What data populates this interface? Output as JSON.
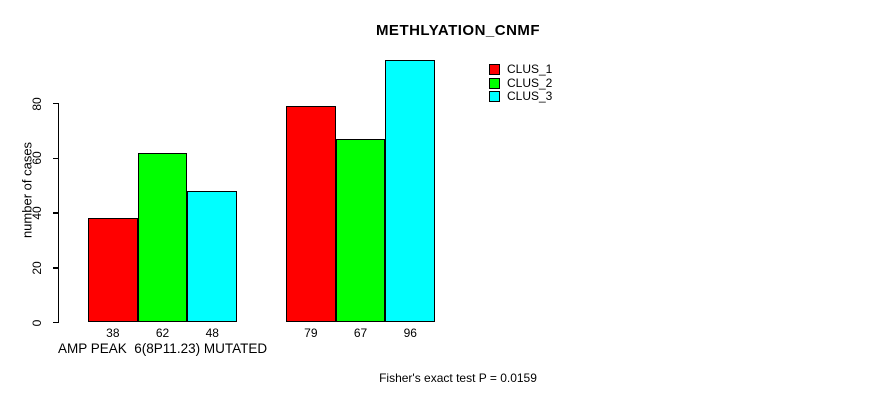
{
  "chart_data": {
    "type": "bar",
    "title": "METHLYATION_CNMF",
    "ylabel": "number of cases",
    "xlabel": "",
    "ylim": [
      0,
      80
    ],
    "yticks": [
      0,
      20,
      40,
      60,
      80
    ],
    "grid": false,
    "legend_position": "top-right",
    "categories": [
      "AMP PEAK  6(8P11.23) MUTATED",
      ""
    ],
    "series": [
      {
        "name": "CLUS_1",
        "color": "#ff0000",
        "values": [
          38,
          79
        ]
      },
      {
        "name": "CLUS_2",
        "color": "#00ff00",
        "values": [
          62,
          67
        ]
      },
      {
        "name": "CLUS_3",
        "color": "#00ffff",
        "values": [
          48,
          96
        ]
      }
    ],
    "value_labels": [
      [
        "38",
        "62",
        "48"
      ],
      [
        "79",
        "67",
        "96"
      ]
    ],
    "footnote": "Fisher's exact test P = 0.0159",
    "axis_color": "#000000",
    "bar_border_color": "#000000",
    "background_color": "#ffffff"
  }
}
